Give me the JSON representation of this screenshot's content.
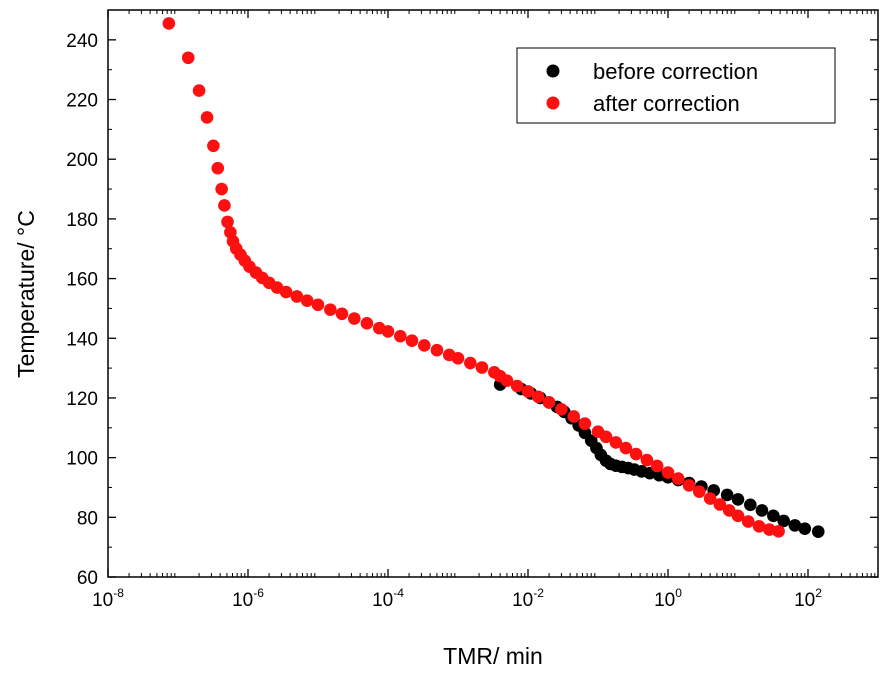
{
  "chart_data": {
    "type": "scatter",
    "xlabel": "TMR/ min",
    "ylabel": "Temperature/ °C",
    "x_scale": "log",
    "xlim": [
      1e-08,
      1000
    ],
    "ylim": [
      60,
      250
    ],
    "x_ticks": [
      {
        "base": "10",
        "exp": "-8",
        "value": 1e-08
      },
      {
        "base": "10",
        "exp": "-6",
        "value": 1e-06
      },
      {
        "base": "10",
        "exp": "-4",
        "value": 0.0001
      },
      {
        "base": "10",
        "exp": "-2",
        "value": 0.01
      },
      {
        "base": "10",
        "exp": "0",
        "value": 1
      },
      {
        "base": "10",
        "exp": "2",
        "value": 100
      }
    ],
    "y_ticks": [
      "60",
      "80",
      "100",
      "120",
      "140",
      "160",
      "180",
      "200",
      "220",
      "240"
    ],
    "grid": false,
    "legend_position": "top-right",
    "series": [
      {
        "name": "before correction",
        "color": "#000000",
        "points": [
          [
            0.004,
            124.5
          ],
          [
            0.008,
            123.0
          ],
          [
            0.011,
            121.5
          ],
          [
            0.015,
            120.0
          ],
          [
            0.02,
            118.5
          ],
          [
            0.026,
            117.0
          ],
          [
            0.033,
            115.3
          ],
          [
            0.042,
            113.2
          ],
          [
            0.053,
            110.8
          ],
          [
            0.065,
            108.3
          ],
          [
            0.08,
            105.7
          ],
          [
            0.095,
            103.2
          ],
          [
            0.11,
            100.9
          ],
          [
            0.13,
            99.0
          ],
          [
            0.15,
            97.9
          ],
          [
            0.18,
            97.3
          ],
          [
            0.22,
            96.9
          ],
          [
            0.27,
            96.5
          ],
          [
            0.33,
            96.0
          ],
          [
            0.42,
            95.4
          ],
          [
            0.55,
            94.8
          ],
          [
            0.75,
            94.1
          ],
          [
            1.0,
            93.4
          ],
          [
            1.4,
            92.5
          ],
          [
            2.0,
            91.5
          ],
          [
            3.0,
            90.3
          ],
          [
            4.5,
            89.0
          ],
          [
            7.0,
            87.5
          ],
          [
            10,
            86.0
          ],
          [
            15,
            84.2
          ],
          [
            22,
            82.3
          ],
          [
            32,
            80.5
          ],
          [
            45,
            78.8
          ],
          [
            65,
            77.3
          ],
          [
            90,
            76.2
          ],
          [
            140,
            75.2
          ]
        ]
      },
      {
        "name": "after correction",
        "color": "#ff1010",
        "points": [
          [
            7.4e-08,
            245.5
          ],
          [
            1.4e-07,
            234.0
          ],
          [
            2e-07,
            223.0
          ],
          [
            2.6e-07,
            214.0
          ],
          [
            3.2e-07,
            204.5
          ],
          [
            3.7e-07,
            197.0
          ],
          [
            4.2e-07,
            190.0
          ],
          [
            4.6e-07,
            184.5
          ],
          [
            5.1e-07,
            179.0
          ],
          [
            5.6e-07,
            175.5
          ],
          [
            6.1e-07,
            172.5
          ],
          [
            6.8e-07,
            170.0
          ],
          [
            7.8e-07,
            168.0
          ],
          [
            9e-07,
            166.0
          ],
          [
            1.05e-06,
            164.0
          ],
          [
            1.3e-06,
            162.0
          ],
          [
            1.6e-06,
            160.2
          ],
          [
            2e-06,
            158.6
          ],
          [
            2.6e-06,
            157.0
          ],
          [
            3.5e-06,
            155.5
          ],
          [
            5e-06,
            154.0
          ],
          [
            7e-06,
            152.6
          ],
          [
            1e-05,
            151.2
          ],
          [
            1.5e-05,
            149.6
          ],
          [
            2.2e-05,
            148.2
          ],
          [
            3.3e-05,
            146.6
          ],
          [
            5e-05,
            145.0
          ],
          [
            7.5e-05,
            143.4
          ],
          [
            0.0001,
            142.3
          ],
          [
            0.00015,
            140.7
          ],
          [
            0.00022,
            139.2
          ],
          [
            0.00033,
            137.6
          ],
          [
            0.0005,
            136.0
          ],
          [
            0.00075,
            134.4
          ],
          [
            0.001,
            133.3
          ],
          [
            0.0015,
            131.7
          ],
          [
            0.0022,
            130.2
          ],
          [
            0.0033,
            128.6
          ],
          [
            0.004,
            127.3
          ],
          [
            0.005,
            125.8
          ],
          [
            0.007,
            124.0
          ],
          [
            0.01,
            122.2
          ],
          [
            0.014,
            120.4
          ],
          [
            0.02,
            118.5
          ],
          [
            0.03,
            116.2
          ],
          [
            0.045,
            113.8
          ],
          [
            0.065,
            111.4
          ],
          [
            0.1,
            108.7
          ],
          [
            0.13,
            107.0
          ],
          [
            0.18,
            105.1
          ],
          [
            0.25,
            103.2
          ],
          [
            0.35,
            101.2
          ],
          [
            0.5,
            99.2
          ],
          [
            0.7,
            97.2
          ],
          [
            1.0,
            95.0
          ],
          [
            1.4,
            93.0
          ],
          [
            2.0,
            90.7
          ],
          [
            2.8,
            88.6
          ],
          [
            4.0,
            86.3
          ],
          [
            5.5,
            84.3
          ],
          [
            7.5,
            82.3
          ],
          [
            10,
            80.5
          ],
          [
            14,
            78.6
          ],
          [
            20,
            77.0
          ],
          [
            28,
            75.9
          ],
          [
            38,
            75.3
          ]
        ]
      }
    ]
  }
}
